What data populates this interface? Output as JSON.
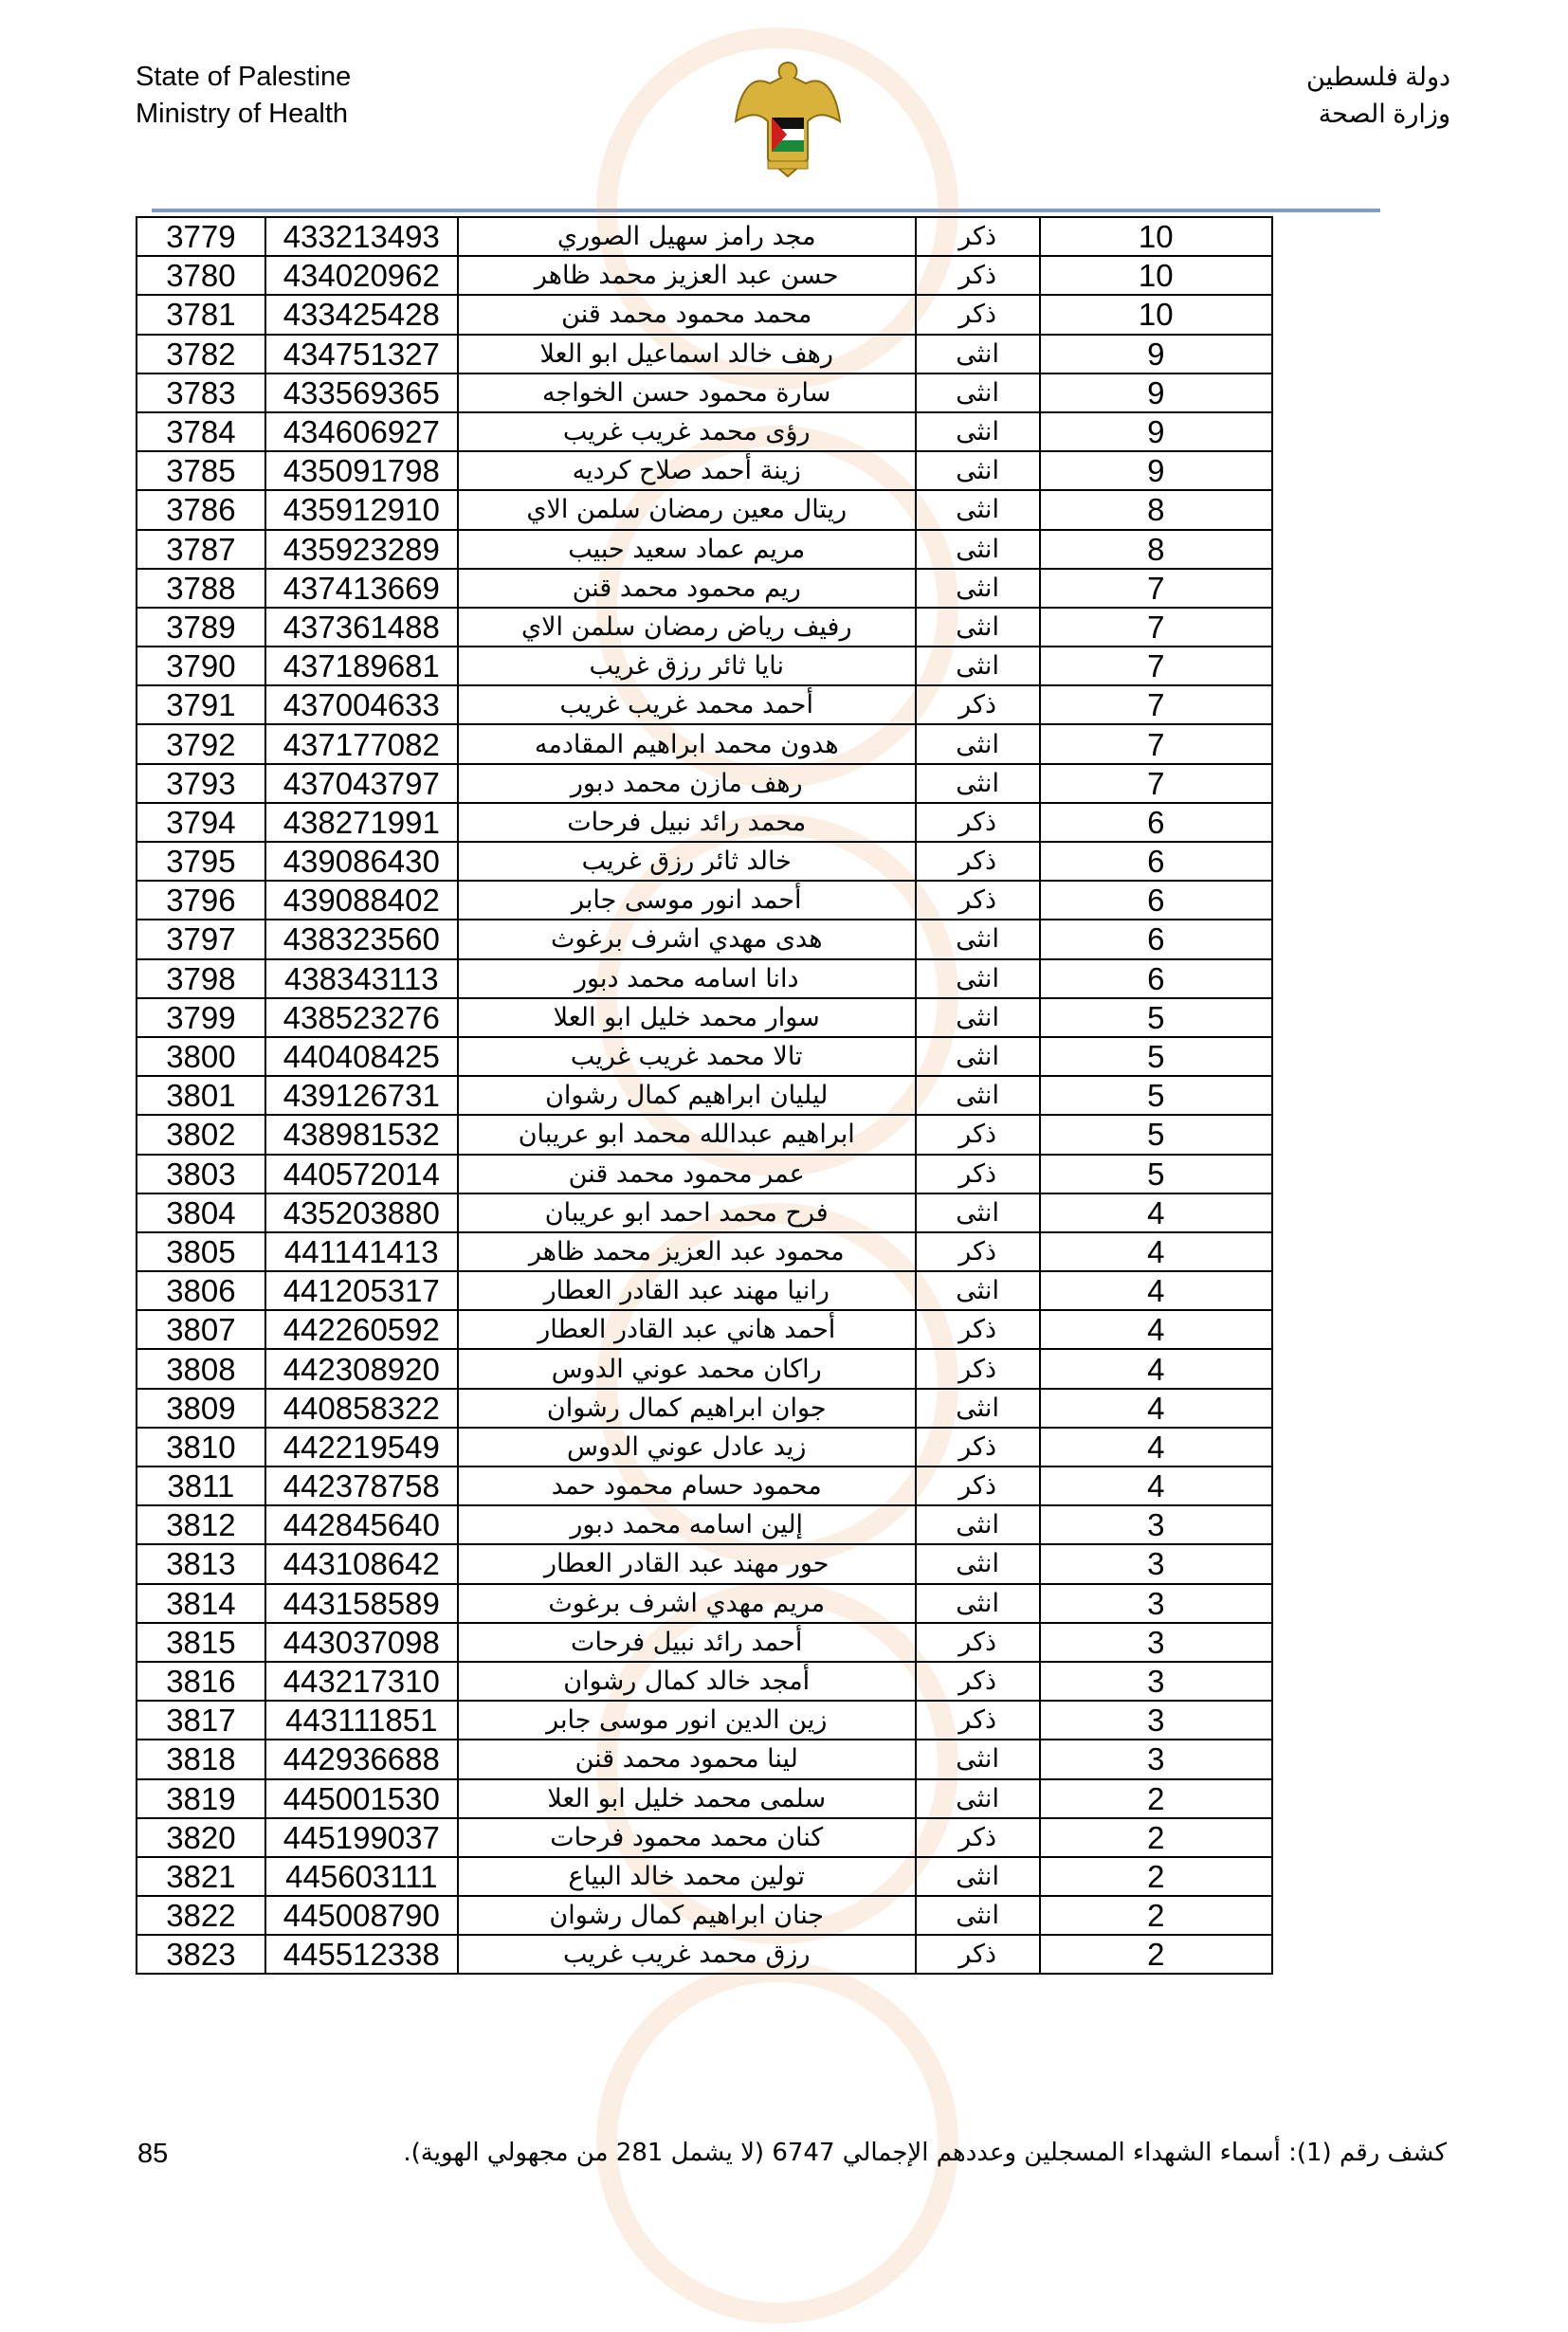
{
  "header": {
    "left_line1": "State of Palestine",
    "left_line2": "Ministry of Health",
    "right_line1": "دولة فلسطين",
    "right_line2": "وزارة الصحة"
  },
  "colors": {
    "rule": "#7f9cc6",
    "watermark": "#e8a060"
  },
  "table": {
    "rows": [
      {
        "no": "3779",
        "id": "433213493",
        "name": "مجد رامز سهيل الصوري",
        "gender": "ذكر",
        "age": "10"
      },
      {
        "no": "3780",
        "id": "434020962",
        "name": "حسن عبد العزيز محمد ظاهر",
        "gender": "ذكر",
        "age": "10"
      },
      {
        "no": "3781",
        "id": "433425428",
        "name": "محمد محمود محمد قنن",
        "gender": "ذكر",
        "age": "10"
      },
      {
        "no": "3782",
        "id": "434751327",
        "name": "رهف خالد اسماعيل ابو العلا",
        "gender": "انثى",
        "age": "9"
      },
      {
        "no": "3783",
        "id": "433569365",
        "name": "سارة محمود حسن الخواجه",
        "gender": "انثى",
        "age": "9"
      },
      {
        "no": "3784",
        "id": "434606927",
        "name": "رؤى محمد غريب غريب",
        "gender": "انثى",
        "age": "9"
      },
      {
        "no": "3785",
        "id": "435091798",
        "name": "زينة أحمد صلاح كرديه",
        "gender": "انثى",
        "age": "9"
      },
      {
        "no": "3786",
        "id": "435912910",
        "name": "ريتال معين رمضان سلمن الاي",
        "gender": "انثى",
        "age": "8"
      },
      {
        "no": "3787",
        "id": "435923289",
        "name": "مريم عماد سعيد حبيب",
        "gender": "انثى",
        "age": "8"
      },
      {
        "no": "3788",
        "id": "437413669",
        "name": "ريم محمود محمد قنن",
        "gender": "انثى",
        "age": "7"
      },
      {
        "no": "3789",
        "id": "437361488",
        "name": "رفيف رياض رمضان سلمن الاي",
        "gender": "انثى",
        "age": "7"
      },
      {
        "no": "3790",
        "id": "437189681",
        "name": "نايا ثائر رزق غريب",
        "gender": "انثى",
        "age": "7"
      },
      {
        "no": "3791",
        "id": "437004633",
        "name": "أحمد محمد غريب غريب",
        "gender": "ذكر",
        "age": "7"
      },
      {
        "no": "3792",
        "id": "437177082",
        "name": "هدون محمد ابراهيم المقادمه",
        "gender": "انثى",
        "age": "7"
      },
      {
        "no": "3793",
        "id": "437043797",
        "name": "رهف مازن محمد دبور",
        "gender": "انثى",
        "age": "7"
      },
      {
        "no": "3794",
        "id": "438271991",
        "name": "محمد رائد نبيل فرحات",
        "gender": "ذكر",
        "age": "6"
      },
      {
        "no": "3795",
        "id": "439086430",
        "name": "خالد ثائر رزق غريب",
        "gender": "ذكر",
        "age": "6"
      },
      {
        "no": "3796",
        "id": "439088402",
        "name": "أحمد انور موسى جابر",
        "gender": "ذكر",
        "age": "6"
      },
      {
        "no": "3797",
        "id": "438323560",
        "name": "هدى مهدي اشرف برغوث",
        "gender": "انثى",
        "age": "6"
      },
      {
        "no": "3798",
        "id": "438343113",
        "name": "دانا اسامه محمد دبور",
        "gender": "انثى",
        "age": "6"
      },
      {
        "no": "3799",
        "id": "438523276",
        "name": "سوار محمد خليل ابو العلا",
        "gender": "انثى",
        "age": "5"
      },
      {
        "no": "3800",
        "id": "440408425",
        "name": "تالا محمد غريب غريب",
        "gender": "انثى",
        "age": "5"
      },
      {
        "no": "3801",
        "id": "439126731",
        "name": "ليليان ابراهيم كمال رشوان",
        "gender": "انثى",
        "age": "5"
      },
      {
        "no": "3802",
        "id": "438981532",
        "name": "ابراهيم عبدالله محمد ابو عريبان",
        "gender": "ذكر",
        "age": "5"
      },
      {
        "no": "3803",
        "id": "440572014",
        "name": "عمر محمود محمد قنن",
        "gender": "ذكر",
        "age": "5"
      },
      {
        "no": "3804",
        "id": "435203880",
        "name": "فرح محمد احمد ابو عريبان",
        "gender": "انثى",
        "age": "4"
      },
      {
        "no": "3805",
        "id": "441141413",
        "name": "محمود عبد العزيز محمد ظاهر",
        "gender": "ذكر",
        "age": "4"
      },
      {
        "no": "3806",
        "id": "441205317",
        "name": "رانيا مهند عبد القادر العطار",
        "gender": "انثى",
        "age": "4"
      },
      {
        "no": "3807",
        "id": "442260592",
        "name": "أحمد هاني عبد القادر العطار",
        "gender": "ذكر",
        "age": "4"
      },
      {
        "no": "3808",
        "id": "442308920",
        "name": "راكان محمد عوني الدوس",
        "gender": "ذكر",
        "age": "4"
      },
      {
        "no": "3809",
        "id": "440858322",
        "name": "جوان ابراهيم كمال رشوان",
        "gender": "انثى",
        "age": "4"
      },
      {
        "no": "3810",
        "id": "442219549",
        "name": "زيد عادل عوني الدوس",
        "gender": "ذكر",
        "age": "4"
      },
      {
        "no": "3811",
        "id": "442378758",
        "name": "محمود حسام محمود حمد",
        "gender": "ذكر",
        "age": "4"
      },
      {
        "no": "3812",
        "id": "442845640",
        "name": "إلين اسامه محمد دبور",
        "gender": "انثى",
        "age": "3"
      },
      {
        "no": "3813",
        "id": "443108642",
        "name": "حور مهند عبد القادر العطار",
        "gender": "انثى",
        "age": "3"
      },
      {
        "no": "3814",
        "id": "443158589",
        "name": "مريم مهدي اشرف برغوث",
        "gender": "انثى",
        "age": "3"
      },
      {
        "no": "3815",
        "id": "443037098",
        "name": "أحمد رائد نبيل فرحات",
        "gender": "ذكر",
        "age": "3"
      },
      {
        "no": "3816",
        "id": "443217310",
        "name": "أمجد خالد كمال رشوان",
        "gender": "ذكر",
        "age": "3"
      },
      {
        "no": "3817",
        "id": "443111851",
        "name": "زين الدين انور موسى جابر",
        "gender": "ذكر",
        "age": "3"
      },
      {
        "no": "3818",
        "id": "442936688",
        "name": "لينا محمود محمد قنن",
        "gender": "انثى",
        "age": "3"
      },
      {
        "no": "3819",
        "id": "445001530",
        "name": "سلمى محمد خليل ابو العلا",
        "gender": "انثى",
        "age": "2"
      },
      {
        "no": "3820",
        "id": "445199037",
        "name": "كنان محمد محمود فرحات",
        "gender": "ذكر",
        "age": "2"
      },
      {
        "no": "3821",
        "id": "445603111",
        "name": "تولين محمد خالد البياع",
        "gender": "انثى",
        "age": "2"
      },
      {
        "no": "3822",
        "id": "445008790",
        "name": "جنان ابراهيم كمال رشوان",
        "gender": "انثى",
        "age": "2"
      },
      {
        "no": "3823",
        "id": "445512338",
        "name": "رزق محمد غريب غريب",
        "gender": "ذكر",
        "age": "2"
      }
    ]
  },
  "footer": {
    "page_number": "85",
    "caption": "كشف رقم (1): أسماء الشهداء المسجلين وعددهم الإجمالي 6747 (لا يشمل 281 من مجهولي الهوية)."
  }
}
